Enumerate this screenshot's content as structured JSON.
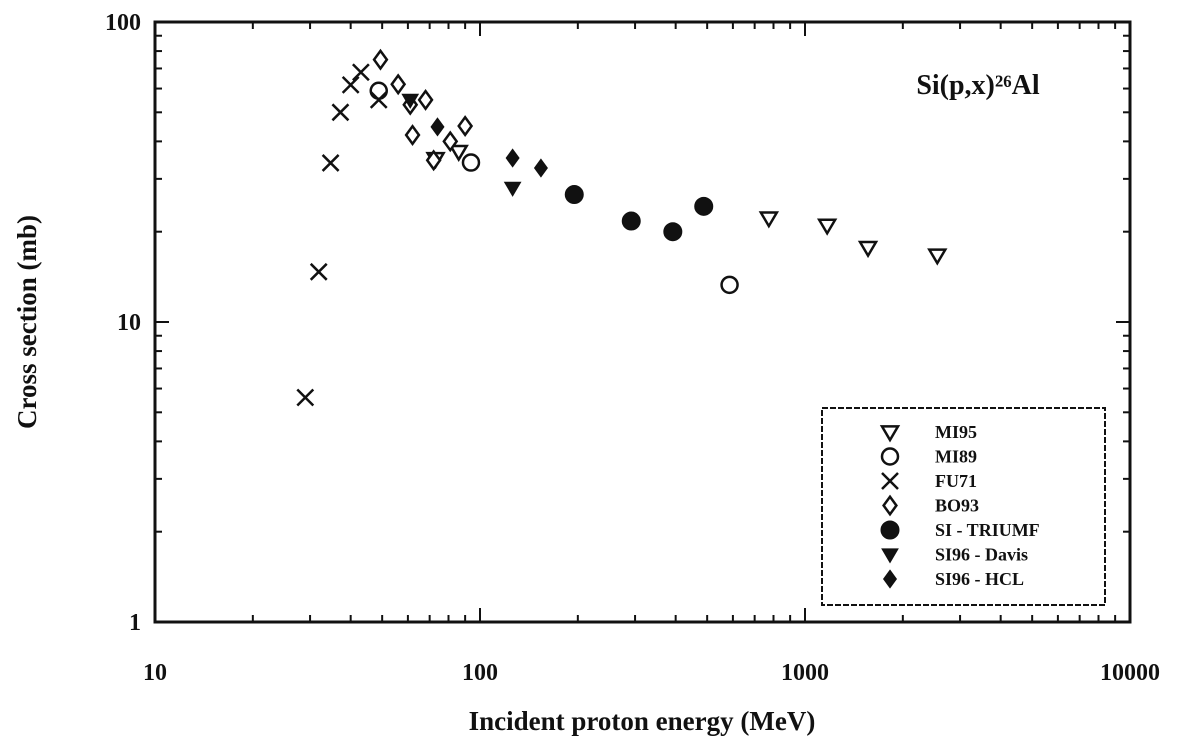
{
  "chart_data": {
    "type": "scatter",
    "annotation": "Si(p,x)²⁶Al",
    "xlabel": "Incident proton energy (MeV)",
    "ylabel": "Cross section (mb)",
    "xscale": "log",
    "yscale": "log",
    "xlim": [
      10,
      10000
    ],
    "ylim": [
      1,
      100
    ],
    "xticks": [
      10,
      100,
      1000,
      10000
    ],
    "yticks": [
      1,
      10,
      100
    ],
    "legend": "lower right",
    "series": [
      {
        "name": "MI95",
        "marker": "triangle-open",
        "color": "#111",
        "x": [
          73,
          86,
          774,
          1170,
          1563,
          2553
        ],
        "values": [
          35,
          37,
          22.2,
          21,
          17.7,
          16.7
        ]
      },
      {
        "name": "MI89",
        "marker": "circle-open",
        "color": "#111",
        "x": [
          48.8,
          93.8,
          586
        ],
        "values": [
          59,
          34,
          13.3
        ]
      },
      {
        "name": "FU71",
        "marker": "x",
        "color": "#111",
        "x": [
          29,
          31.9,
          34.7,
          37.2,
          40,
          43,
          48.8
        ],
        "values": [
          5.6,
          14.7,
          33.9,
          50,
          61.7,
          68,
          55
        ]
      },
      {
        "name": "BO93",
        "marker": "diamond-open",
        "color": "#111",
        "x": [
          49.4,
          56,
          61,
          62,
          68,
          72,
          81,
          90
        ],
        "values": [
          74.9,
          62,
          53,
          42,
          55,
          34.6,
          40,
          45
        ]
      },
      {
        "name": "SI - TRIUMF",
        "marker": "circle",
        "color": "#111",
        "x": [
          195,
          292,
          392,
          488
        ],
        "values": [
          26.6,
          21.7,
          20,
          24.3
        ]
      },
      {
        "name": "SI96 - Davis",
        "marker": "triangle",
        "color": "#111",
        "x": [
          61,
          126
        ],
        "values": [
          55,
          28
        ]
      },
      {
        "name": "SI96 - HCL",
        "marker": "diamond",
        "color": "#111",
        "x": [
          74,
          126,
          154
        ],
        "values": [
          44.7,
          35.2,
          32.6
        ]
      }
    ]
  }
}
